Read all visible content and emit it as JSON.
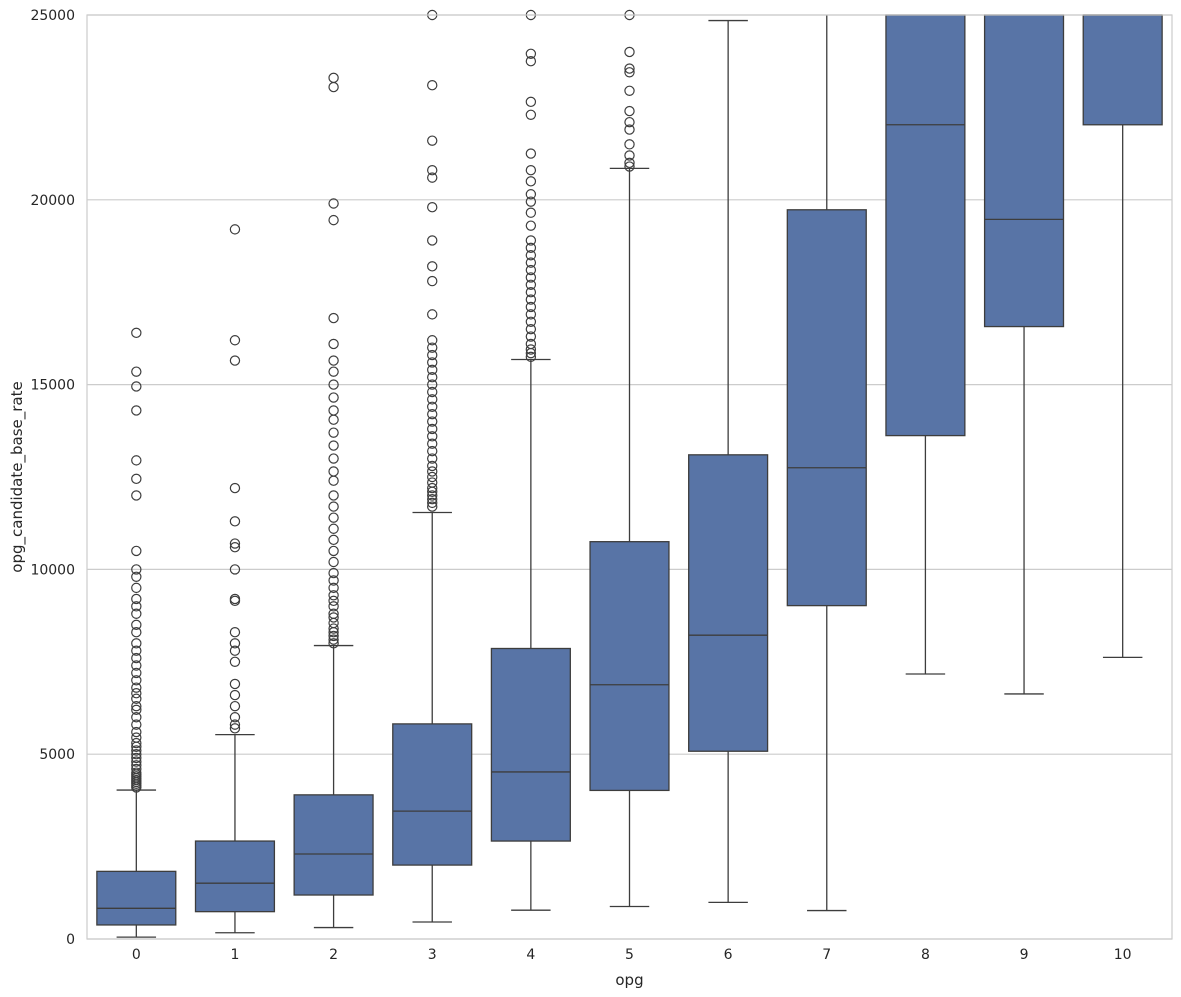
{
  "chart_data": {
    "type": "boxplot",
    "title": "",
    "xlabel": "opg",
    "ylabel": "opg_candidate_base_rate",
    "ylim": [
      0,
      25000
    ],
    "yticks": [
      0,
      5000,
      10000,
      15000,
      20000,
      25000
    ],
    "grid": "horizontal",
    "box_color": "#5874a6",
    "line_color": "#3d3d3d",
    "categories": [
      "0",
      "1",
      "2",
      "3",
      "4",
      "5",
      "6",
      "7",
      "8",
      "9",
      "10"
    ],
    "boxes": [
      {
        "category": "0",
        "whisker_low": 50,
        "q1": 380,
        "median": 830,
        "q3": 1830,
        "whisker_high": 4030,
        "outliers": [
          4100,
          4150,
          4200,
          4250,
          4300,
          4350,
          4400,
          4450,
          4500,
          4600,
          4700,
          4800,
          4900,
          5000,
          5100,
          5200,
          5300,
          5450,
          5600,
          5800,
          6000,
          6200,
          6300,
          6500,
          6650,
          6800,
          7000,
          7200,
          7400,
          7600,
          7800,
          8000,
          8300,
          8500,
          8800,
          9000,
          9200,
          9500,
          9800,
          10000,
          10500,
          12000,
          12450,
          12950,
          14300,
          14950,
          15350,
          16400
        ]
      },
      {
        "category": "1",
        "whisker_low": 170,
        "q1": 740,
        "median": 1510,
        "q3": 2650,
        "whisker_high": 5530,
        "outliers": [
          5700,
          5800,
          6000,
          6300,
          6600,
          6900,
          7500,
          7800,
          8000,
          8300,
          9150,
          9200,
          10000,
          10600,
          10700,
          11300,
          12200,
          15650,
          16200,
          19200
        ]
      },
      {
        "category": "2",
        "whisker_low": 310,
        "q1": 1190,
        "median": 2300,
        "q3": 3900,
        "whisker_high": 7940,
        "outliers": [
          8000,
          8100,
          8200,
          8300,
          8400,
          8550,
          8700,
          8800,
          9000,
          9150,
          9300,
          9500,
          9700,
          9900,
          10200,
          10500,
          10800,
          11100,
          11400,
          11700,
          12000,
          12400,
          12650,
          13000,
          13350,
          13700,
          14050,
          14300,
          14650,
          15000,
          15350,
          15650,
          16100,
          16800,
          19450,
          19900,
          23050,
          23300
        ]
      },
      {
        "category": "3",
        "whisker_low": 460,
        "q1": 2000,
        "median": 3460,
        "q3": 5820,
        "whisker_high": 11540,
        "outliers": [
          11700,
          11800,
          11900,
          12000,
          12100,
          12200,
          12350,
          12500,
          12650,
          12800,
          13000,
          13200,
          13400,
          13600,
          13800,
          14000,
          14200,
          14400,
          14600,
          14800,
          15000,
          15200,
          15400,
          15600,
          15800,
          16000,
          16200,
          16900,
          17800,
          18200,
          18900,
          19800,
          20600,
          20800,
          21600,
          23100,
          25000
        ]
      },
      {
        "category": "4",
        "whisker_low": 780,
        "q1": 2650,
        "median": 4520,
        "q3": 7860,
        "whisker_high": 15680,
        "outliers": [
          15750,
          15850,
          15950,
          16100,
          16300,
          16500,
          16700,
          16900,
          17100,
          17300,
          17500,
          17700,
          17900,
          18100,
          18300,
          18500,
          18700,
          18900,
          19300,
          19650,
          19950,
          20150,
          20500,
          20800,
          21250,
          22300,
          22650,
          23750,
          23950,
          25000
        ]
      },
      {
        "category": "5",
        "whisker_low": 880,
        "q1": 4020,
        "median": 6880,
        "q3": 10750,
        "whisker_high": 20850,
        "outliers": [
          20900,
          21000,
          21200,
          21500,
          21900,
          22100,
          22400,
          22950,
          23450,
          23550,
          24000,
          25000
        ]
      },
      {
        "category": "6",
        "whisker_low": 990,
        "q1": 5080,
        "median": 8220,
        "q3": 13100,
        "whisker_high": 24850,
        "outliers": []
      },
      {
        "category": "7",
        "whisker_low": 770,
        "q1": 9020,
        "median": 12750,
        "q3": 19730,
        "whisker_high": 25000,
        "outliers": []
      },
      {
        "category": "8",
        "whisker_low": 7170,
        "q1": 13620,
        "median": 22030,
        "q3": 25000,
        "whisker_high": 25000,
        "outliers": []
      },
      {
        "category": "9",
        "whisker_low": 6630,
        "q1": 16570,
        "median": 19470,
        "q3": 25000,
        "whisker_high": 25000,
        "outliers": []
      },
      {
        "category": "10",
        "whisker_low": 7620,
        "q1": 22030,
        "median": 25000,
        "q3": 25000,
        "whisker_high": 25000,
        "outliers": []
      }
    ]
  }
}
